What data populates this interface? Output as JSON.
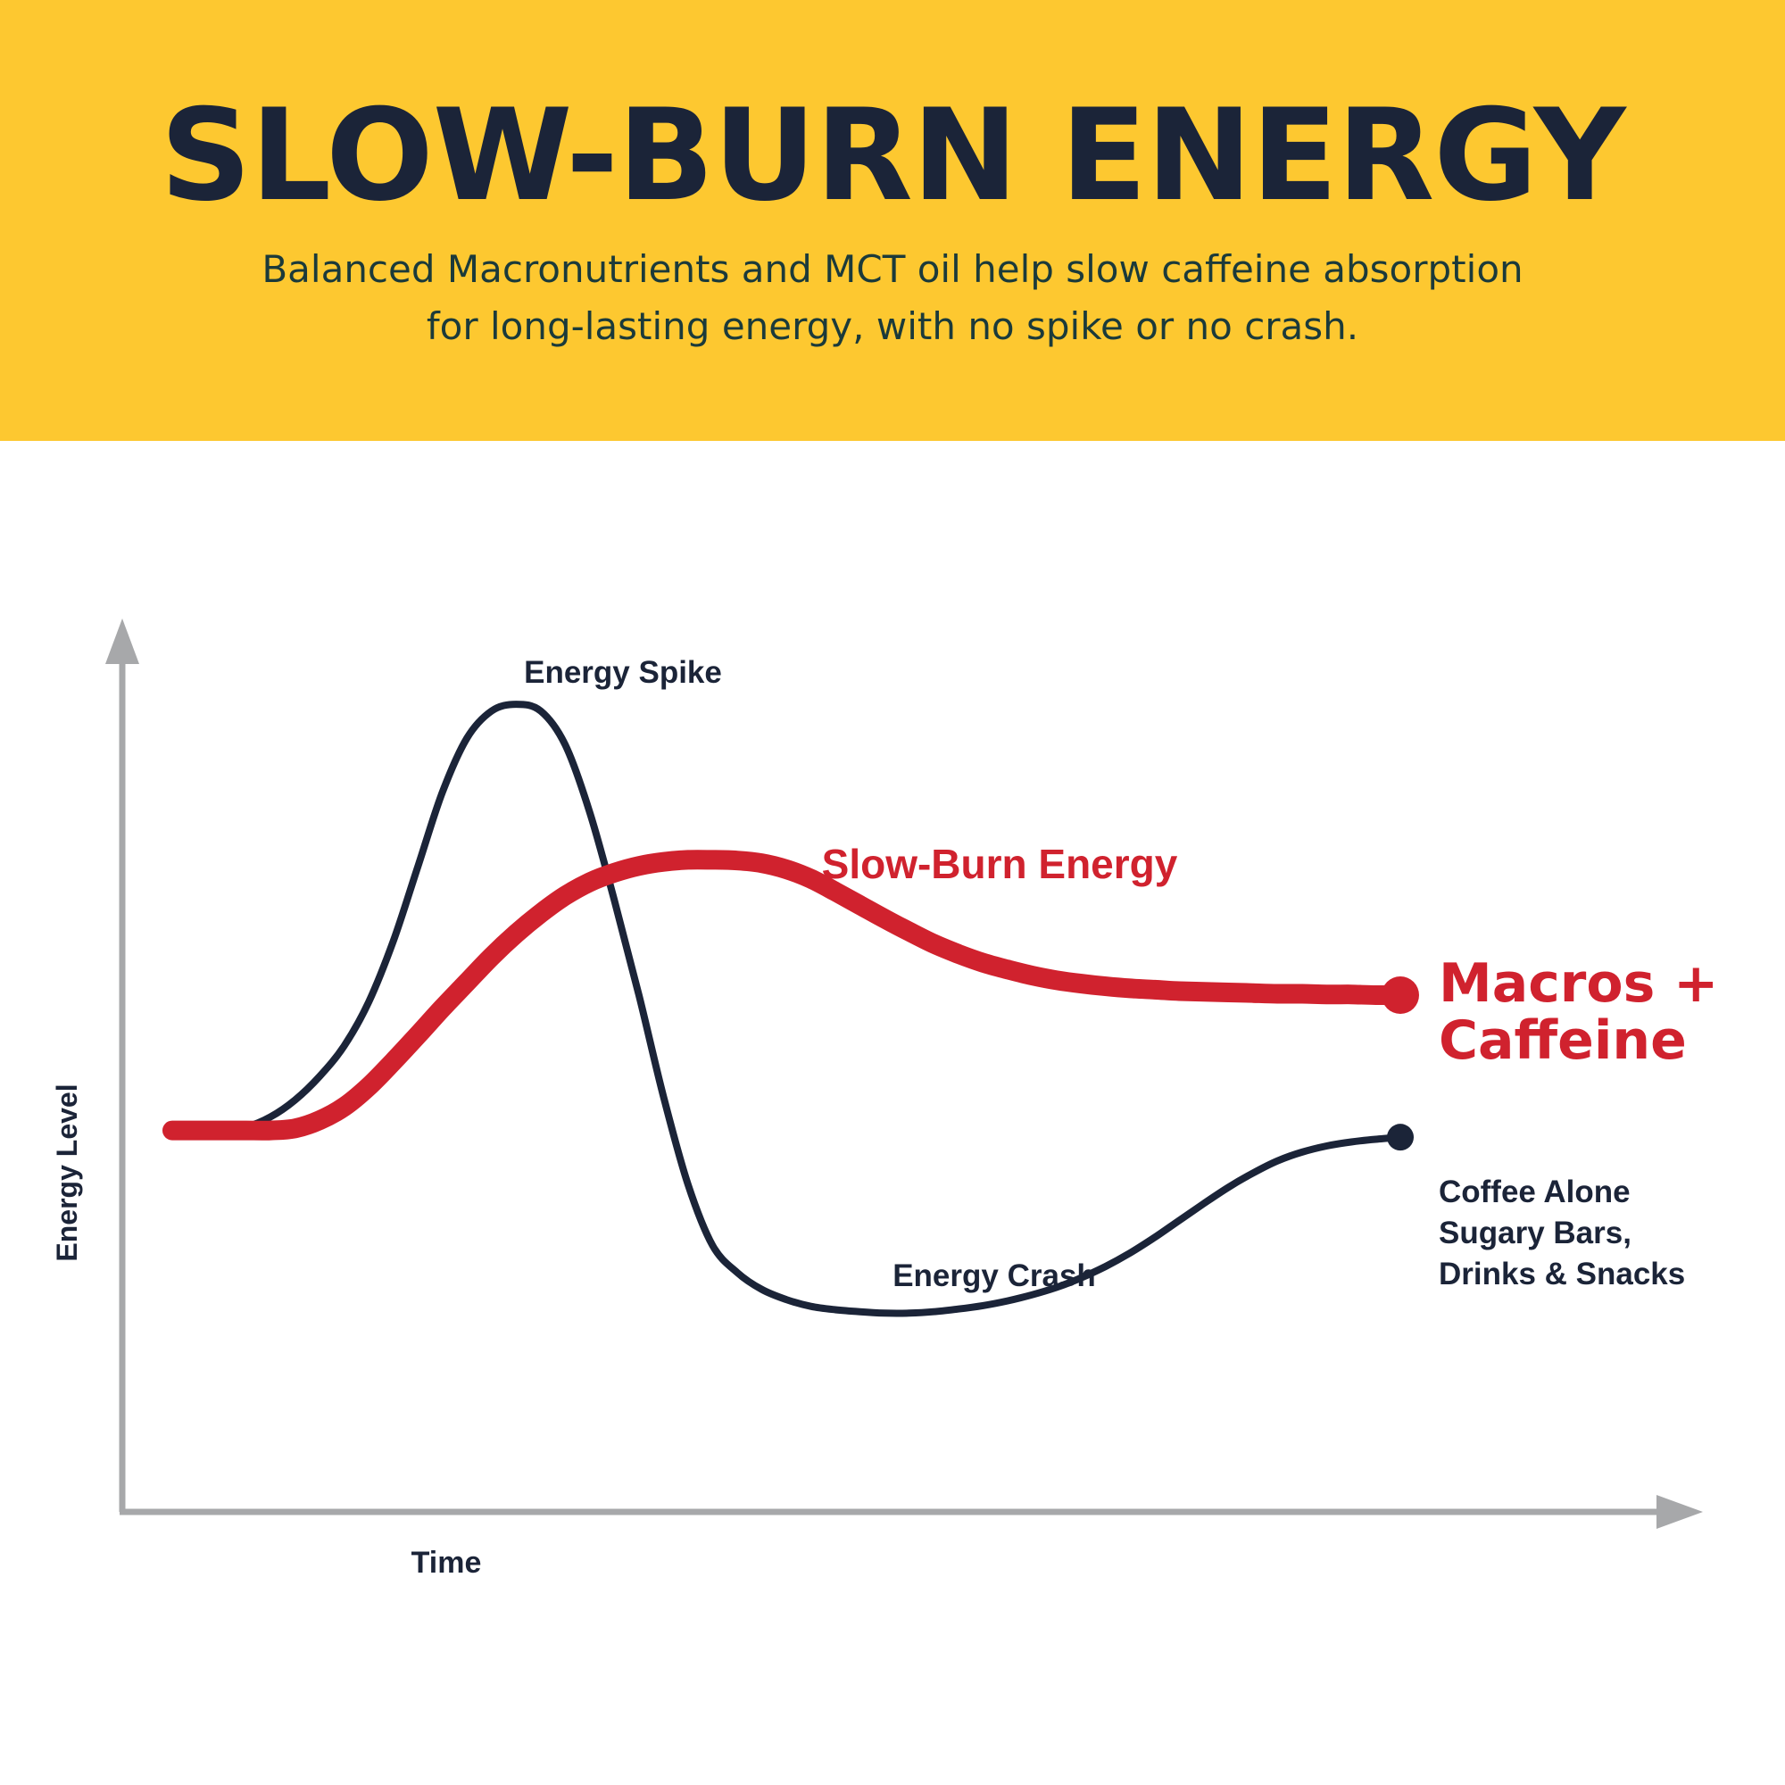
{
  "header": {
    "title": "SLOW-BURN ENERGY",
    "subtitle": "Balanced Macronutrients and MCT oil help slow caffeine absorption for long-lasting energy, with no spike or no crash."
  },
  "colors": {
    "header_bg": "#FDC830",
    "title": "#1B2438",
    "red_series": "#D0222E",
    "navy_series": "#1B2438",
    "axis": "#A7A8AA"
  },
  "chart_data": {
    "type": "line",
    "xlabel": "Time",
    "ylabel": "Energy Level",
    "grid": false,
    "legend": "none",
    "series": [
      {
        "name": "Macros + Caffeine",
        "color": "#D0222E",
        "x": [
          0,
          2,
          4,
          6,
          8,
          10,
          12,
          14,
          16,
          18,
          20,
          22,
          24,
          26,
          28,
          30,
          32,
          34,
          36,
          38,
          40,
          42,
          44,
          46,
          48,
          50,
          52,
          54,
          56,
          58,
          60,
          62,
          64,
          66,
          68,
          70,
          72,
          74,
          76,
          78,
          80,
          82,
          84,
          86,
          88,
          90,
          92,
          94,
          96,
          98,
          100
        ],
        "y": [
          30,
          30,
          30,
          30,
          30,
          30.3,
          31.5,
          33.5,
          36.5,
          40.2,
          44.1,
          48.1,
          51.9,
          55.7,
          59.1,
          62.1,
          64.7,
          66.7,
          68.1,
          69.1,
          69.7,
          70,
          70,
          69.9,
          69.5,
          68.6,
          67.2,
          65.3,
          63.3,
          61.3,
          59.4,
          57.6,
          56.1,
          54.8,
          53.8,
          52.9,
          52.2,
          51.7,
          51.3,
          51,
          50.8,
          50.6,
          50.5,
          50.4,
          50.3,
          50.2,
          50.2,
          50.1,
          50.1,
          50,
          50
        ]
      },
      {
        "name": "Coffee Alone Sugary Bars, Drinks & Snacks",
        "color": "#1B2438",
        "x": [
          0,
          2,
          4,
          6,
          8,
          10,
          12,
          14,
          16,
          18,
          20,
          22,
          24,
          26,
          28,
          30,
          32,
          34,
          36,
          38,
          40,
          42,
          44,
          46,
          48,
          50,
          52,
          54,
          56,
          58,
          60,
          62,
          64,
          66,
          68,
          70,
          72,
          74,
          76,
          78,
          80,
          82,
          84,
          86,
          88,
          90,
          92,
          94,
          96,
          98,
          100
        ],
        "y": [
          30,
          30,
          30,
          30.5,
          32,
          34.5,
          38,
          42.5,
          49,
          58,
          69,
          80,
          88,
          92,
          93,
          92,
          87,
          77,
          64,
          50,
          35,
          22,
          13,
          9,
          6.5,
          5,
          4,
          3.5,
          3.2,
          3,
          3,
          3.2,
          3.6,
          4.1,
          4.8,
          5.7,
          6.8,
          8.2,
          9.9,
          11.9,
          14.2,
          16.7,
          19.2,
          21.6,
          23.7,
          25.5,
          26.8,
          27.7,
          28.3,
          28.7,
          29
        ]
      }
    ],
    "annotations": [
      {
        "text": "Energy Spike",
        "color": "#1B2438"
      },
      {
        "text": "Slow-Burn Energy",
        "color": "#D0222E"
      },
      {
        "text": "Energy Crash",
        "color": "#1B2438"
      }
    ],
    "end_labels": {
      "red": [
        "Macros +",
        "Caffeine"
      ],
      "navy": [
        "Coffee Alone",
        "Sugary Bars,",
        "Drinks & Snacks"
      ]
    }
  }
}
